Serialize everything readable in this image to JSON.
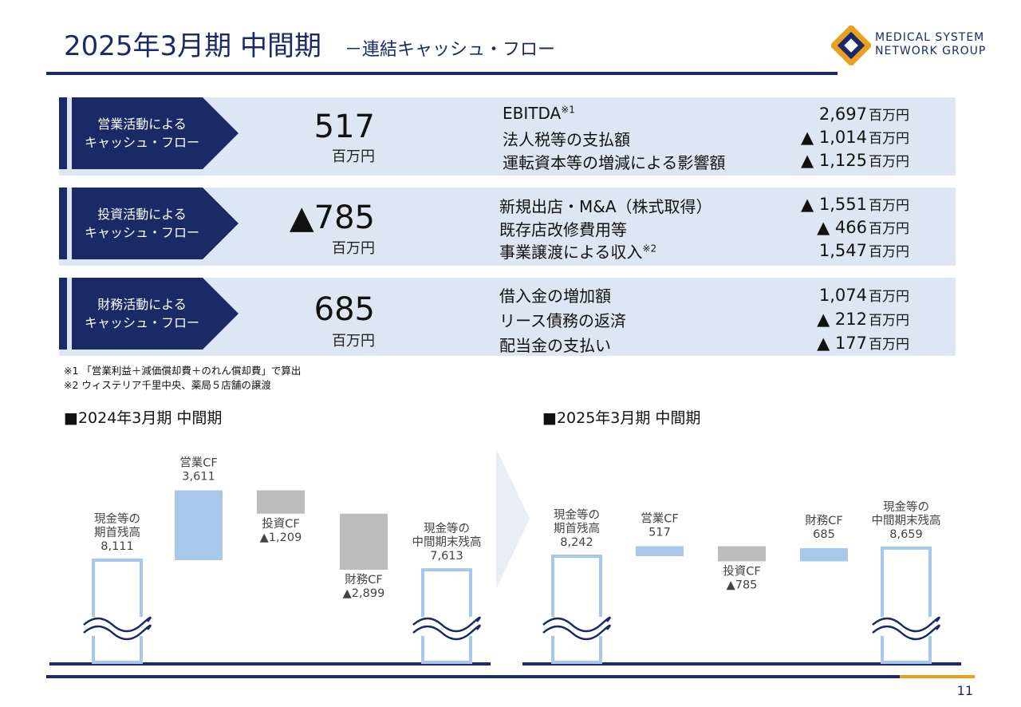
{
  "header": {
    "title": "2025年3月期 中間期",
    "subtitle": "－連結キャッシュ・フロー",
    "logo_line1": "MEDICAL SYSTEM",
    "logo_line2": "NETWORK GROUP"
  },
  "rows": [
    {
      "label_line1": "営業活動による",
      "label_line2": "キャッシュ・フロー",
      "amount": "517",
      "unit": "百万円",
      "items": [
        {
          "text": "EBITDA",
          "note": "※1",
          "value": "2,697",
          "unit": "百万円"
        },
        {
          "text": "法人税等の支払額",
          "note": "",
          "value": "▲ 1,014",
          "unit": "百万円"
        },
        {
          "text": "運転資本等の増減による影響額",
          "note": "",
          "value": "▲ 1,125",
          "unit": "百万円"
        }
      ]
    },
    {
      "label_line1": "投資活動による",
      "label_line2": "キャッシュ・フロー",
      "amount": "▲785",
      "unit": "百万円",
      "items": [
        {
          "text": "新規出店・M&A（株式取得）",
          "note": "",
          "value": "▲ 1,551",
          "unit": "百万円"
        },
        {
          "text": "既存店改修費用等",
          "note": "",
          "value": "▲ 466",
          "unit": "百万円"
        },
        {
          "text": "事業譲渡による収入",
          "note": "※2",
          "value": "1,547",
          "unit": "百万円"
        }
      ]
    },
    {
      "label_line1": "財務活動による",
      "label_line2": "キャッシュ・フロー",
      "amount": "685",
      "unit": "百万円",
      "items": [
        {
          "text": "借入金の増加額",
          "note": "",
          "value": "1,074",
          "unit": "百万円"
        },
        {
          "text": "リース債務の返済",
          "note": "",
          "value": "▲ 212",
          "unit": "百万円"
        },
        {
          "text": "配当金の支払い",
          "note": "",
          "value": "▲ 177",
          "unit": "百万円"
        }
      ]
    }
  ],
  "footnotes": {
    "note1": "※1 「営業利益＋減価償却費＋のれん償却費」で算出",
    "note2": "※2 ウィステリア千里中央、薬局５店舗の譲渡"
  },
  "colors": {
    "navy": "#1a2a66",
    "band": "#dde7f3",
    "bar_blue": "#a8c8ea",
    "bar_gray": "#bcbcbc",
    "orange": "#e8a020"
  },
  "chart_data": [
    {
      "type": "bar",
      "title": "■2024年3月期 中間期",
      "subtype": "waterfall",
      "categories": [
        "現金等の期首残高",
        "営業CF",
        "投資CF",
        "財務CF",
        "現金等の中間期末残高"
      ],
      "values": [
        8111,
        3611,
        -1209,
        -2899,
        7613
      ],
      "labels": [
        [
          "現金等の",
          "期首残高",
          "8,111"
        ],
        [
          "営業CF",
          "3,611"
        ],
        [
          "投資CF",
          "▲1,209"
        ],
        [
          "財務CF",
          "▲2,899"
        ],
        [
          "現金等の",
          "中間期末残高",
          "7,613"
        ]
      ]
    },
    {
      "type": "bar",
      "title": "■2025年3月期 中間期",
      "subtype": "waterfall",
      "categories": [
        "現金等の期首残高",
        "営業CF",
        "投資CF",
        "財務CF",
        "現金等の中間期末残高"
      ],
      "values": [
        8242,
        517,
        -785,
        685,
        8659
      ],
      "labels": [
        [
          "現金等の",
          "期首残高",
          "8,242"
        ],
        [
          "営業CF",
          "517"
        ],
        [
          "投資CF",
          "▲785"
        ],
        [
          "財務CF",
          "685"
        ],
        [
          "現金等の",
          "中間期末残高",
          "8,659"
        ]
      ]
    }
  ],
  "page_number": "11"
}
